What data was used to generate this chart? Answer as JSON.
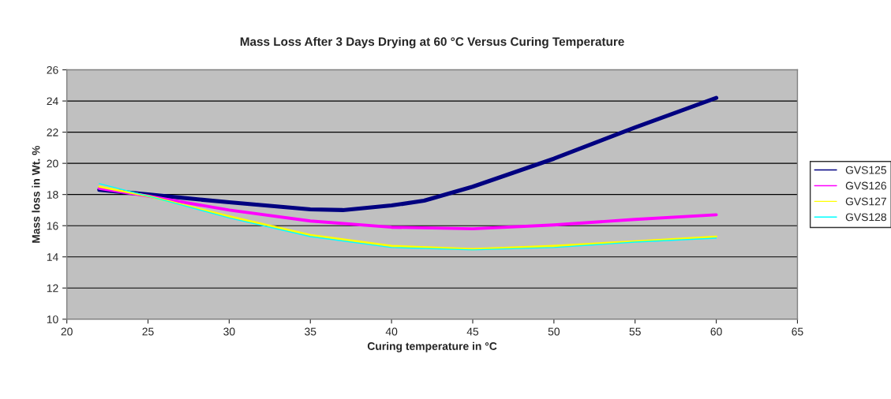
{
  "chart_data": {
    "type": "line",
    "title": "Mass Loss After 3 Days Drying at 60 °C Versus Curing Temperature",
    "xlabel": "Curing temperature in °C",
    "ylabel": "Mass loss in Wt. %",
    "xlim": [
      20,
      65
    ],
    "xticks": [
      20,
      25,
      30,
      35,
      40,
      45,
      50,
      55,
      60,
      65
    ],
    "ylim": [
      10,
      26
    ],
    "yticks": [
      10,
      12,
      14,
      16,
      18,
      20,
      22,
      24,
      26
    ],
    "grid": "y",
    "legend": "right",
    "marker": "none",
    "line_style": "solid",
    "series": [
      {
        "name": "GVS125",
        "color": "#000080",
        "x": [
          22,
          25,
          30,
          35,
          37,
          40,
          42,
          45,
          50,
          55,
          60
        ],
        "values": [
          18.3,
          18.0,
          17.5,
          17.05,
          17.0,
          17.3,
          17.6,
          18.5,
          20.3,
          22.3,
          24.2
        ]
      },
      {
        "name": "GVS126",
        "color": "#ff00ff",
        "x": [
          22,
          25,
          30,
          35,
          40,
          45,
          50,
          55,
          60
        ],
        "values": [
          18.4,
          17.9,
          17.0,
          16.3,
          15.9,
          15.8,
          16.05,
          16.4,
          16.7
        ]
      },
      {
        "name": "GVS127",
        "color": "#ffff00",
        "x": [
          22,
          25,
          30,
          35,
          40,
          45,
          50,
          55,
          60
        ],
        "values": [
          18.5,
          17.9,
          16.6,
          15.4,
          14.7,
          14.5,
          14.7,
          15.0,
          15.3
        ]
      },
      {
        "name": "GVS128",
        "color": "#00ffff",
        "x": [
          22,
          25,
          30,
          35,
          40,
          45,
          50,
          55,
          60
        ],
        "values": [
          18.7,
          17.9,
          16.5,
          15.3,
          14.6,
          14.45,
          14.6,
          14.95,
          15.2
        ]
      }
    ]
  }
}
